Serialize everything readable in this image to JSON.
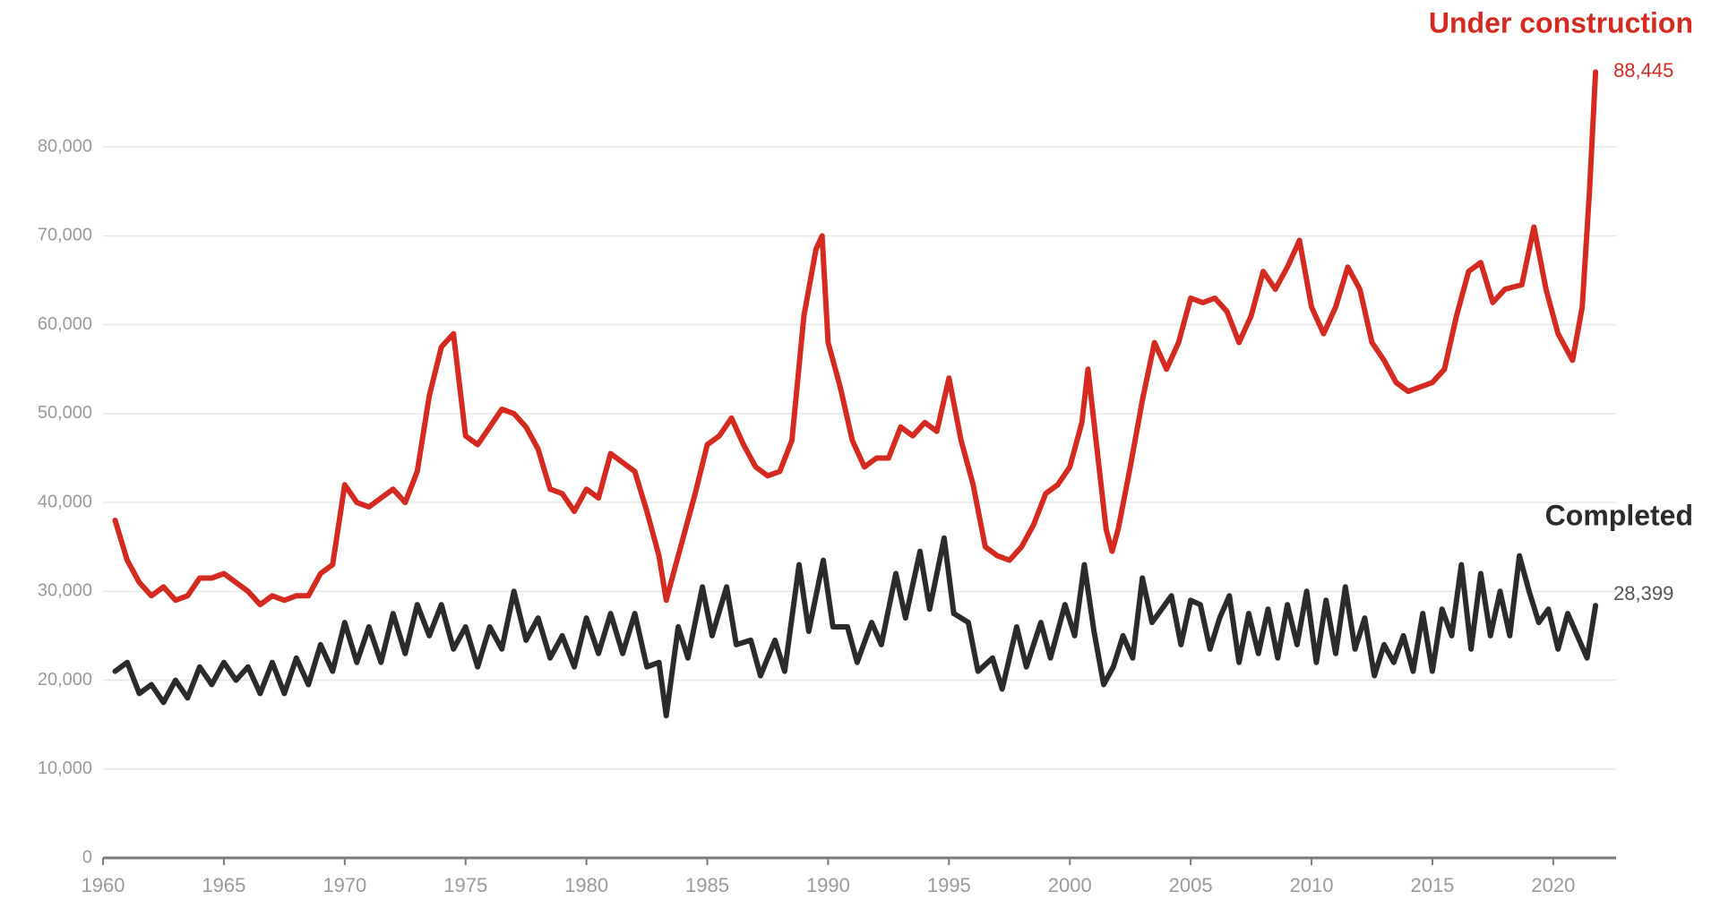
{
  "chart_data": {
    "type": "line",
    "xlim": [
      1960,
      2022.6
    ],
    "xticks": [
      1960,
      1965,
      1970,
      1975,
      1980,
      1985,
      1990,
      1995,
      2000,
      2005,
      2010,
      2015,
      2020
    ],
    "ylim": [
      0,
      90000
    ],
    "yticks": [
      0,
      {
        "value": 10000,
        "label": "10,000"
      },
      {
        "value": 20000,
        "label": "20,000"
      },
      {
        "value": 30000,
        "label": "30,000"
      },
      {
        "value": 40000,
        "label": "40,000"
      },
      {
        "value": 50000,
        "label": "50,000"
      },
      {
        "value": 60000,
        "label": "60,000"
      },
      {
        "value": 70000,
        "label": "70,000"
      },
      {
        "value": 80000,
        "label": "80,000"
      }
    ],
    "grid": true,
    "series": [
      {
        "name": "Under construction",
        "color": "#d42a20",
        "x": [
          1960.5,
          1961,
          1961.5,
          1962,
          1962.5,
          1963,
          1963.5,
          1964,
          1964.5,
          1965,
          1965.5,
          1966,
          1966.5,
          1967,
          1967.5,
          1968,
          1968.5,
          1969,
          1969.5,
          1970,
          1970.5,
          1971,
          1971.5,
          1972,
          1972.5,
          1973,
          1973.5,
          1974,
          1974.5,
          1975,
          1975.5,
          1976,
          1976.5,
          1977,
          1977.5,
          1978,
          1978.5,
          1979,
          1979.5,
          1980,
          1980.5,
          1981,
          1981.5,
          1982,
          1982.5,
          1983,
          1983.3,
          1983.5,
          1984,
          1984.5,
          1985,
          1985.5,
          1986,
          1986.5,
          1987,
          1987.5,
          1988,
          1988.5,
          1989,
          1989.5,
          1989.75,
          1990,
          1990.5,
          1991,
          1991.5,
          1992,
          1992.5,
          1993,
          1993.5,
          1994,
          1994.5,
          1995,
          1995.5,
          1996,
          1996.5,
          1997,
          1997.5,
          1998,
          1998.5,
          1999,
          1999.5,
          2000,
          2000.5,
          2000.75,
          2001,
          2001.5,
          2001.75,
          2002,
          2002.5,
          2003,
          2003.5,
          2004,
          2004.5,
          2005,
          2005.5,
          2006,
          2006.5,
          2007,
          2007.5,
          2008,
          2008.5,
          2009,
          2009.5,
          2010,
          2010.5,
          2011,
          2011.5,
          2012,
          2012.5,
          2013,
          2013.5,
          2014,
          2014.5,
          2015,
          2015.5,
          2016,
          2016.5,
          2017,
          2017.5,
          2018,
          2018.7,
          2019.2,
          2019.7,
          2020.2,
          2020.8,
          2021.2,
          2021.5,
          2021.75
        ],
        "values": [
          38000,
          33500,
          31000,
          29500,
          30500,
          29000,
          29500,
          31500,
          31500,
          32000,
          31000,
          30000,
          28500,
          29500,
          29000,
          29500,
          29500,
          32000,
          33000,
          42000,
          40000,
          39500,
          40500,
          41500,
          40000,
          43500,
          52000,
          57500,
          59000,
          47500,
          46500,
          48500,
          50500,
          50000,
          48500,
          46000,
          41500,
          41000,
          39000,
          41500,
          40500,
          45500,
          44500,
          43500,
          39000,
          34000,
          29000,
          31000,
          36000,
          41000,
          46500,
          47500,
          49500,
          46500,
          44000,
          43000,
          43500,
          47000,
          61000,
          68500,
          70000,
          58000,
          53000,
          47000,
          44000,
          45000,
          45000,
          48500,
          47500,
          49000,
          48000,
          54000,
          47000,
          42000,
          35000,
          34000,
          33500,
          35000,
          37500,
          41000,
          42000,
          44000,
          49000,
          55000,
          49000,
          37000,
          34500,
          37000,
          44000,
          51500,
          58000,
          55000,
          58000,
          63000,
          62500,
          63000,
          61500,
          58000,
          61000,
          66000,
          64000,
          66500,
          69500,
          62000,
          59000,
          62000,
          66500,
          64000,
          58000,
          56000,
          53500,
          52500,
          53000,
          53500,
          55000,
          61000,
          66000,
          67000,
          62500,
          64000,
          64500,
          71000,
          64000,
          59000,
          56000,
          62000,
          75000,
          88445
        ],
        "value_labels": [
          null,
          null,
          null,
          null,
          null,
          null,
          null,
          null,
          null,
          null,
          null,
          null,
          null,
          null,
          null,
          null,
          null,
          null,
          null,
          null,
          null,
          null,
          null,
          null,
          null,
          null,
          null,
          null,
          null,
          null,
          null,
          null,
          null,
          null,
          null,
          null,
          null,
          null,
          null,
          null,
          null,
          null,
          null,
          null,
          null,
          null,
          null,
          null,
          null,
          null,
          null,
          null,
          null,
          null,
          null,
          null,
          null,
          null,
          null,
          null,
          null,
          null,
          null,
          null,
          null,
          null,
          null,
          null,
          null,
          null,
          null,
          null,
          null,
          null,
          null,
          null,
          null,
          null,
          null,
          null,
          null,
          null,
          null,
          null,
          null,
          null,
          null,
          null,
          null,
          null,
          null,
          null,
          null,
          null,
          null,
          null,
          null,
          null,
          null,
          null,
          null,
          null,
          null,
          null,
          null,
          null,
          null,
          null,
          null,
          null,
          null,
          null,
          null,
          null,
          null,
          null,
          null,
          null,
          null,
          null,
          null,
          null,
          null,
          null,
          null,
          null,
          null,
          "88,445"
        ]
      },
      {
        "name": "Completed",
        "color": "#2b2b2b",
        "x": [
          1960.5,
          1961,
          1961.5,
          1962,
          1962.5,
          1963,
          1963.5,
          1964,
          1964.5,
          1965,
          1965.5,
          1966,
          1966.5,
          1967,
          1967.5,
          1968,
          1968.5,
          1969,
          1969.5,
          1970,
          1970.5,
          1971,
          1971.5,
          1972,
          1972.5,
          1973,
          1973.5,
          1974,
          1974.5,
          1975,
          1975.5,
          1976,
          1976.5,
          1977,
          1977.5,
          1978,
          1978.5,
          1979,
          1979.5,
          1980,
          1980.5,
          1981,
          1981.5,
          1982,
          1982.5,
          1983,
          1983.3,
          1983.8,
          1984.2,
          1984.8,
          1985.2,
          1985.8,
          1986.2,
          1986.8,
          1987.2,
          1987.8,
          1988.2,
          1988.8,
          1989.2,
          1989.8,
          1990.2,
          1990.8,
          1991.2,
          1991.8,
          1992.2,
          1992.8,
          1993.2,
          1993.8,
          1994.2,
          1994.8,
          1995.2,
          1995.8,
          1996.2,
          1996.8,
          1997.2,
          1997.8,
          1998.2,
          1998.8,
          1999.2,
          1999.8,
          2000.2,
          2000.6,
          2001,
          2001.4,
          2001.8,
          2002.2,
          2002.6,
          2003,
          2003.4,
          2003.8,
          2004.2,
          2004.6,
          2005,
          2005.4,
          2005.8,
          2006.2,
          2006.6,
          2007,
          2007.4,
          2007.8,
          2008.2,
          2008.6,
          2009,
          2009.4,
          2009.8,
          2010.2,
          2010.6,
          2011,
          2011.4,
          2011.8,
          2012.2,
          2012.6,
          2013,
          2013.4,
          2013.8,
          2014.2,
          2014.6,
          2015,
          2015.4,
          2015.8,
          2016.2,
          2016.6,
          2017,
          2017.4,
          2017.8,
          2018.2,
          2018.6,
          2019,
          2019.4,
          2019.8,
          2020.2,
          2020.6,
          2021,
          2021.4,
          2021.75
        ],
        "values": [
          21000,
          22000,
          18500,
          19500,
          17500,
          20000,
          18000,
          21500,
          19500,
          22000,
          20000,
          21500,
          18500,
          22000,
          18500,
          22500,
          19500,
          24000,
          21000,
          26500,
          22000,
          26000,
          22000,
          27500,
          23000,
          28500,
          25000,
          28500,
          23500,
          26000,
          21500,
          26000,
          23500,
          30000,
          24500,
          27000,
          22500,
          25000,
          21500,
          27000,
          23000,
          27500,
          23000,
          27500,
          21500,
          22000,
          16000,
          26000,
          22500,
          30500,
          25000,
          30500,
          24000,
          24500,
          20500,
          24500,
          21000,
          33000,
          25500,
          33500,
          26000,
          26000,
          22000,
          26500,
          24000,
          32000,
          27000,
          34500,
          28000,
          36000,
          27500,
          26500,
          21000,
          22500,
          19000,
          26000,
          21500,
          26500,
          22500,
          28500,
          25000,
          33000,
          25500,
          19500,
          21500,
          25000,
          22500,
          31500,
          26500,
          28000,
          29500,
          24000,
          29000,
          28500,
          23500,
          27000,
          29500,
          22000,
          27500,
          23000,
          28000,
          22500,
          28500,
          24000,
          30000,
          22000,
          29000,
          23000,
          30500,
          23500,
          27000,
          20500,
          24000,
          22000,
          25000,
          21000,
          27500,
          21000,
          28000,
          25000,
          33000,
          23500,
          32000,
          25000,
          30000,
          25000,
          34000,
          30000,
          26500,
          28000,
          23500,
          27500,
          25000,
          22500,
          28399
        ],
        "value_labels": [
          null,
          null,
          null,
          null,
          null,
          null,
          null,
          null,
          null,
          null,
          null,
          null,
          null,
          null,
          null,
          null,
          null,
          null,
          null,
          null,
          null,
          null,
          null,
          null,
          null,
          null,
          null,
          null,
          null,
          null,
          null,
          null,
          null,
          null,
          null,
          null,
          null,
          null,
          null,
          null,
          null,
          null,
          null,
          null,
          null,
          null,
          null,
          null,
          null,
          null,
          null,
          null,
          null,
          null,
          null,
          null,
          null,
          null,
          null,
          null,
          null,
          null,
          null,
          null,
          null,
          null,
          null,
          null,
          null,
          null,
          null,
          null,
          null,
          null,
          null,
          null,
          null,
          null,
          null,
          null,
          null,
          null,
          null,
          null,
          null,
          null,
          null,
          null,
          null,
          null,
          null,
          null,
          null,
          null,
          null,
          null,
          null,
          null,
          null,
          null,
          null,
          null,
          null,
          null,
          null,
          null,
          null,
          null,
          null,
          null,
          null,
          null,
          null,
          null,
          null,
          null,
          null,
          null,
          null,
          null,
          null,
          null,
          null,
          null,
          null,
          null,
          null,
          null,
          null,
          null,
          null,
          null,
          null,
          null,
          "28,399"
        ]
      }
    ]
  }
}
